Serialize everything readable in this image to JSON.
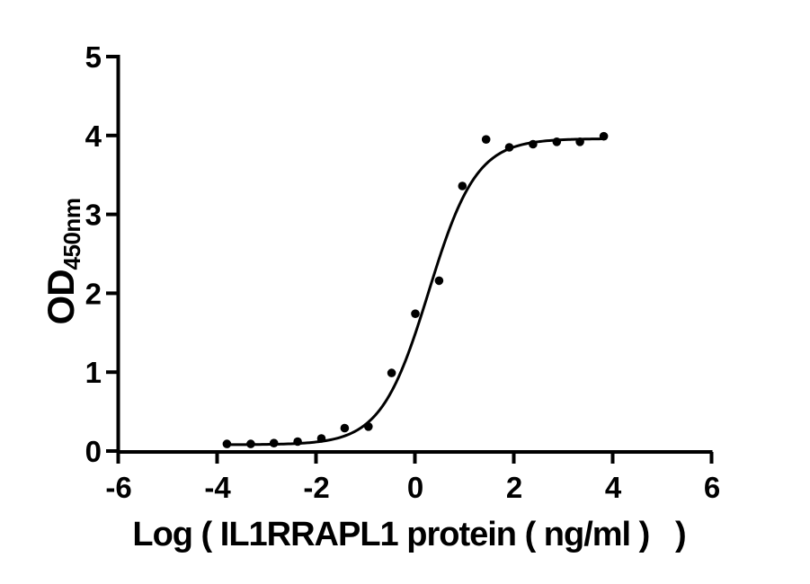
{
  "figure": {
    "background_color": "#ffffff",
    "ink_color": "#000000"
  },
  "axis_titles": {
    "y_main": "OD",
    "y_sub": "450nm",
    "x": "Log ( IL1RRAPL1 protein ( ng/ml )   )"
  },
  "chart_data": {
    "type": "scatter",
    "title": "",
    "xlabel": "Log ( IL1RRAPL1 protein ( ng/ml ) )",
    "ylabel": "OD450nm",
    "xlim": [
      -6,
      6
    ],
    "ylim": [
      0,
      5
    ],
    "x_ticks": [
      -6,
      -4,
      -2,
      0,
      2,
      4,
      6
    ],
    "y_ticks": [
      0,
      1,
      2,
      3,
      4,
      5
    ],
    "grid": false,
    "legend": "none",
    "marker_color": "#000000",
    "line_color": "#000000",
    "x": [
      -3.81,
      -3.33,
      -2.86,
      -2.38,
      -1.9,
      -1.43,
      -0.95,
      -0.48,
      0.0,
      0.48,
      0.95,
      1.43,
      1.9,
      2.38,
      2.86,
      3.33,
      3.81
    ],
    "y": [
      0.09,
      0.09,
      0.1,
      0.12,
      0.16,
      0.29,
      0.31,
      0.99,
      1.74,
      2.16,
      3.36,
      3.95,
      3.85,
      3.89,
      3.92,
      3.92,
      3.99
    ],
    "fit_curve": {
      "model": "4PL",
      "bottom": 0.08,
      "top": 3.96,
      "logEC50": 0.27,
      "hill": 0.9,
      "x_range": [
        -3.81,
        3.81
      ]
    }
  }
}
